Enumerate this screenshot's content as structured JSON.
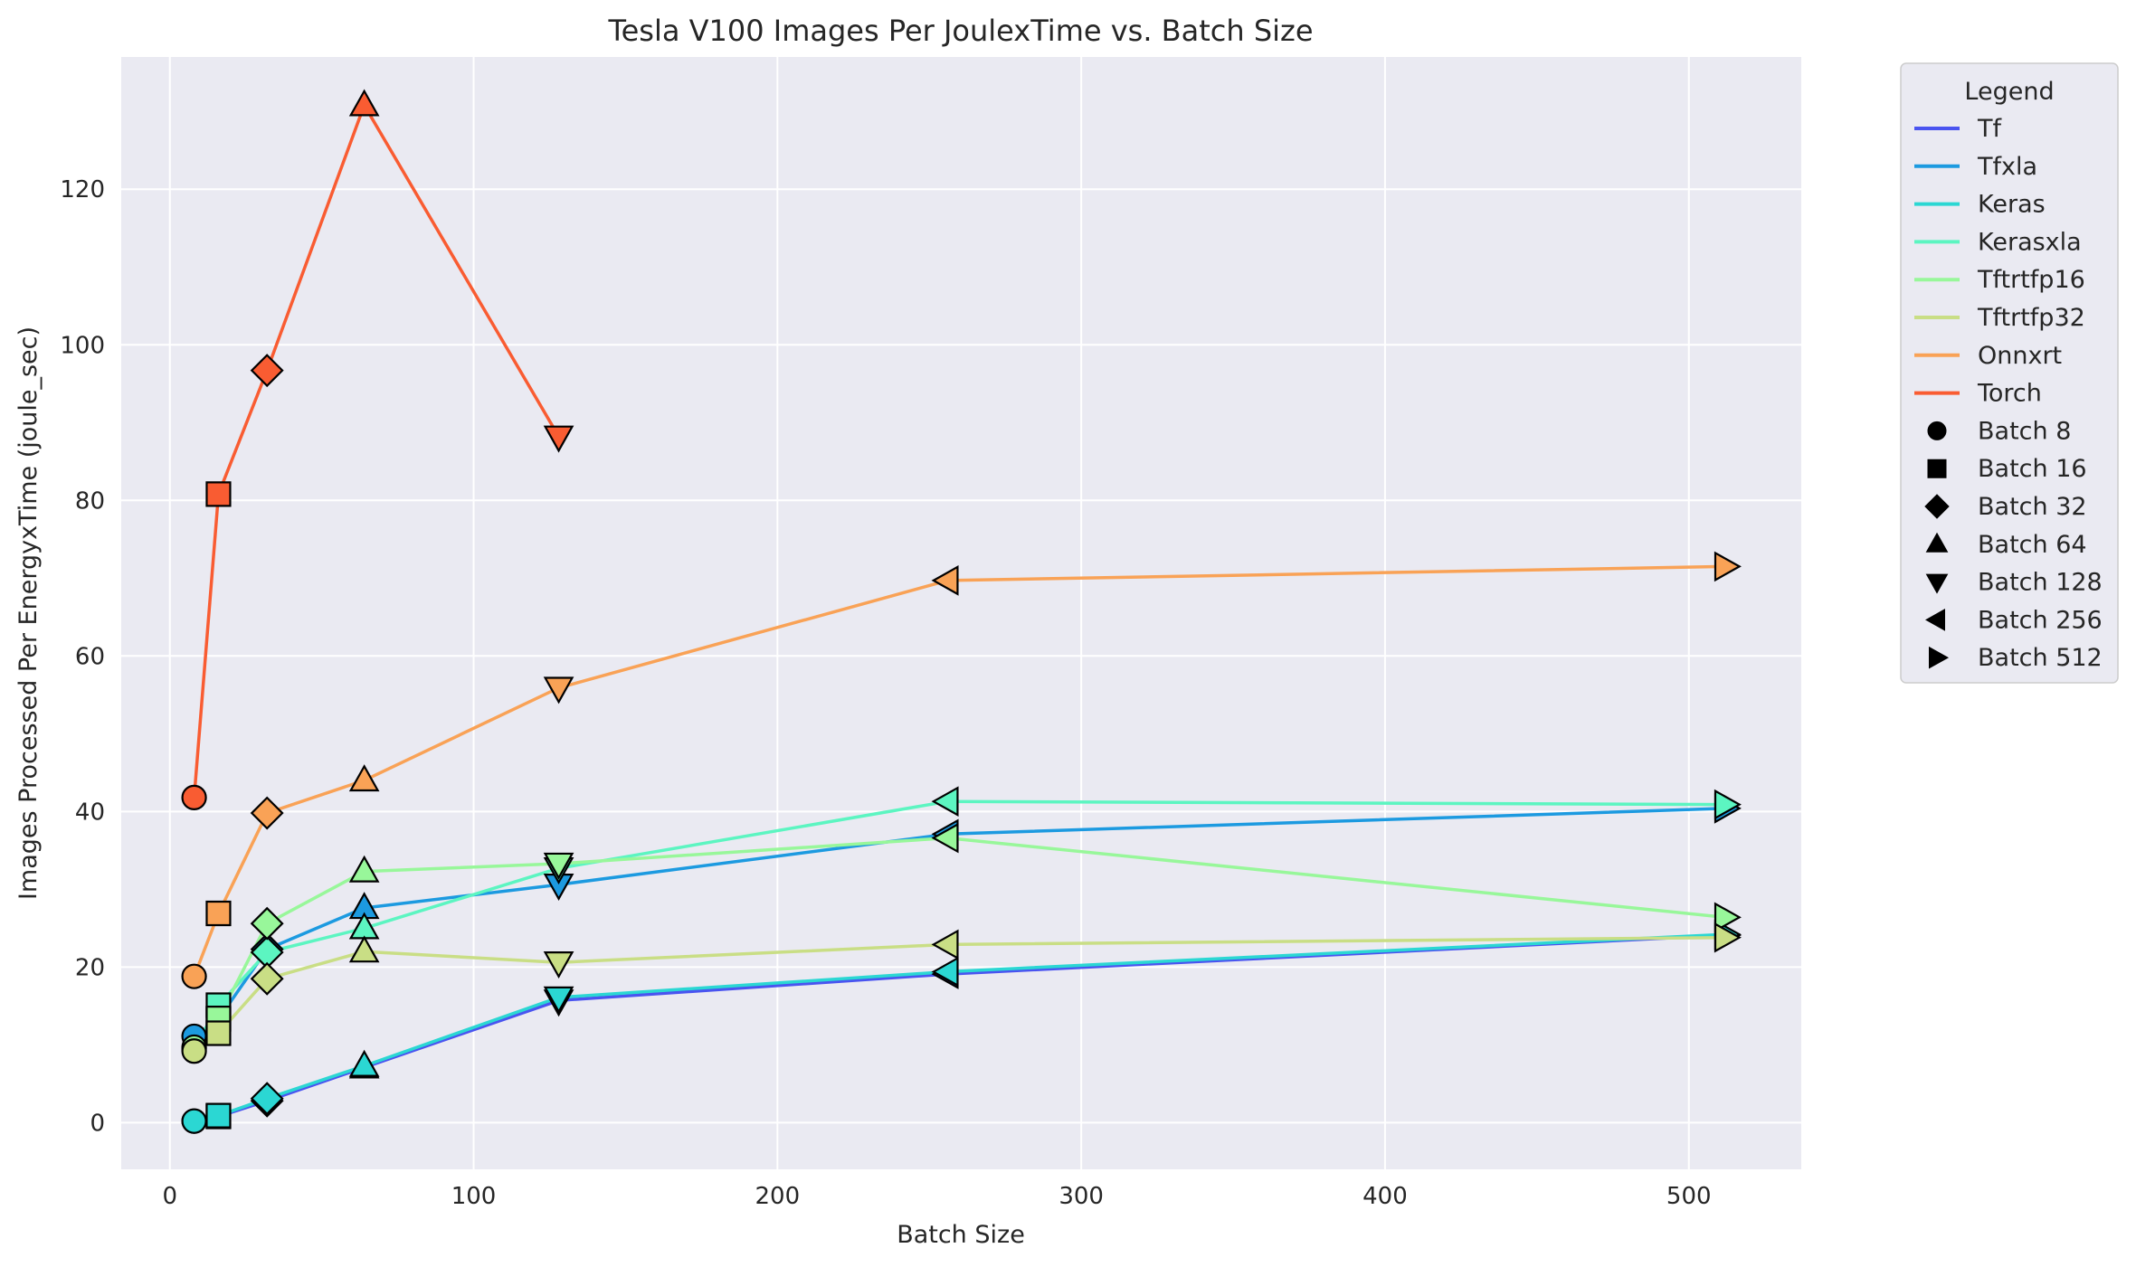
{
  "chart_data": {
    "type": "line",
    "title": "Tesla V100 Images Per JoulexTime vs. Batch Size",
    "xlabel": "Batch Size",
    "ylabel": "Images Processed Per EnergyxTime (joule_sec)",
    "xlim": [
      -16,
      537
    ],
    "ylim": [
      -6,
      137
    ],
    "xticks": [
      0,
      100,
      200,
      300,
      400,
      500
    ],
    "yticks": [
      0,
      20,
      40,
      60,
      80,
      100,
      120
    ],
    "grid": true,
    "legend_title": "Legend",
    "legend_position": "outside-right",
    "series": [
      {
        "name": "Tf",
        "color": "#4a54f0",
        "x": [
          8,
          16,
          32,
          64,
          128,
          256,
          512
        ],
        "y": [
          0.2,
          0.8,
          2.8,
          7.1,
          15.7,
          19.1,
          24.1
        ]
      },
      {
        "name": "Tfxla",
        "color": "#1c9ae0",
        "x": [
          8,
          16,
          32,
          64,
          128,
          256,
          512
        ],
        "y": [
          11.1,
          13.3,
          22.3,
          27.6,
          30.6,
          37.1,
          40.4
        ]
      },
      {
        "name": "Keras",
        "color": "#2bd7d3",
        "x": [
          8,
          16,
          32,
          64,
          128,
          256,
          512
        ],
        "y": [
          0.2,
          0.9,
          3.1,
          7.3,
          16.1,
          19.4,
          24.2
        ]
      },
      {
        "name": "Kerasxla",
        "color": "#5cf5c1",
        "x": [
          8,
          16,
          32,
          64,
          128,
          256,
          512
        ],
        "y": [
          9.5,
          15.1,
          21.9,
          25.0,
          32.7,
          41.3,
          40.9
        ]
      },
      {
        "name": "Tftrtfp16",
        "color": "#98f79a",
        "x": [
          8,
          16,
          32,
          64,
          128,
          256,
          512
        ],
        "y": [
          9.7,
          13.4,
          25.6,
          32.3,
          33.3,
          36.6,
          26.4
        ]
      },
      {
        "name": "Tftrtfp32",
        "color": "#c9de85",
        "x": [
          8,
          16,
          32,
          64,
          128,
          256,
          512
        ],
        "y": [
          9.2,
          11.5,
          18.5,
          22.0,
          20.6,
          22.9,
          23.8
        ]
      },
      {
        "name": "Onnxrt",
        "color": "#f9a256",
        "x": [
          8,
          16,
          32,
          64,
          128,
          256,
          512
        ],
        "y": [
          18.8,
          26.9,
          39.8,
          44.0,
          55.9,
          69.7,
          71.5
        ]
      },
      {
        "name": "Torch",
        "color": "#f95c32",
        "x": [
          8,
          16,
          32,
          64,
          128
        ],
        "y": [
          41.8,
          80.8,
          96.7,
          130.8,
          88.2
        ]
      }
    ],
    "markers": [
      {
        "batch": 8,
        "shape": "circle",
        "label": "Batch 8"
      },
      {
        "batch": 16,
        "shape": "square",
        "label": "Batch 16"
      },
      {
        "batch": 32,
        "shape": "diamond",
        "label": "Batch 32"
      },
      {
        "batch": 64,
        "shape": "triangle-up",
        "label": "Batch 64"
      },
      {
        "batch": 128,
        "shape": "triangle-down",
        "label": "Batch 128"
      },
      {
        "batch": 256,
        "shape": "triangle-left",
        "label": "Batch 256"
      },
      {
        "batch": 512,
        "shape": "triangle-right",
        "label": "Batch 512"
      }
    ]
  }
}
